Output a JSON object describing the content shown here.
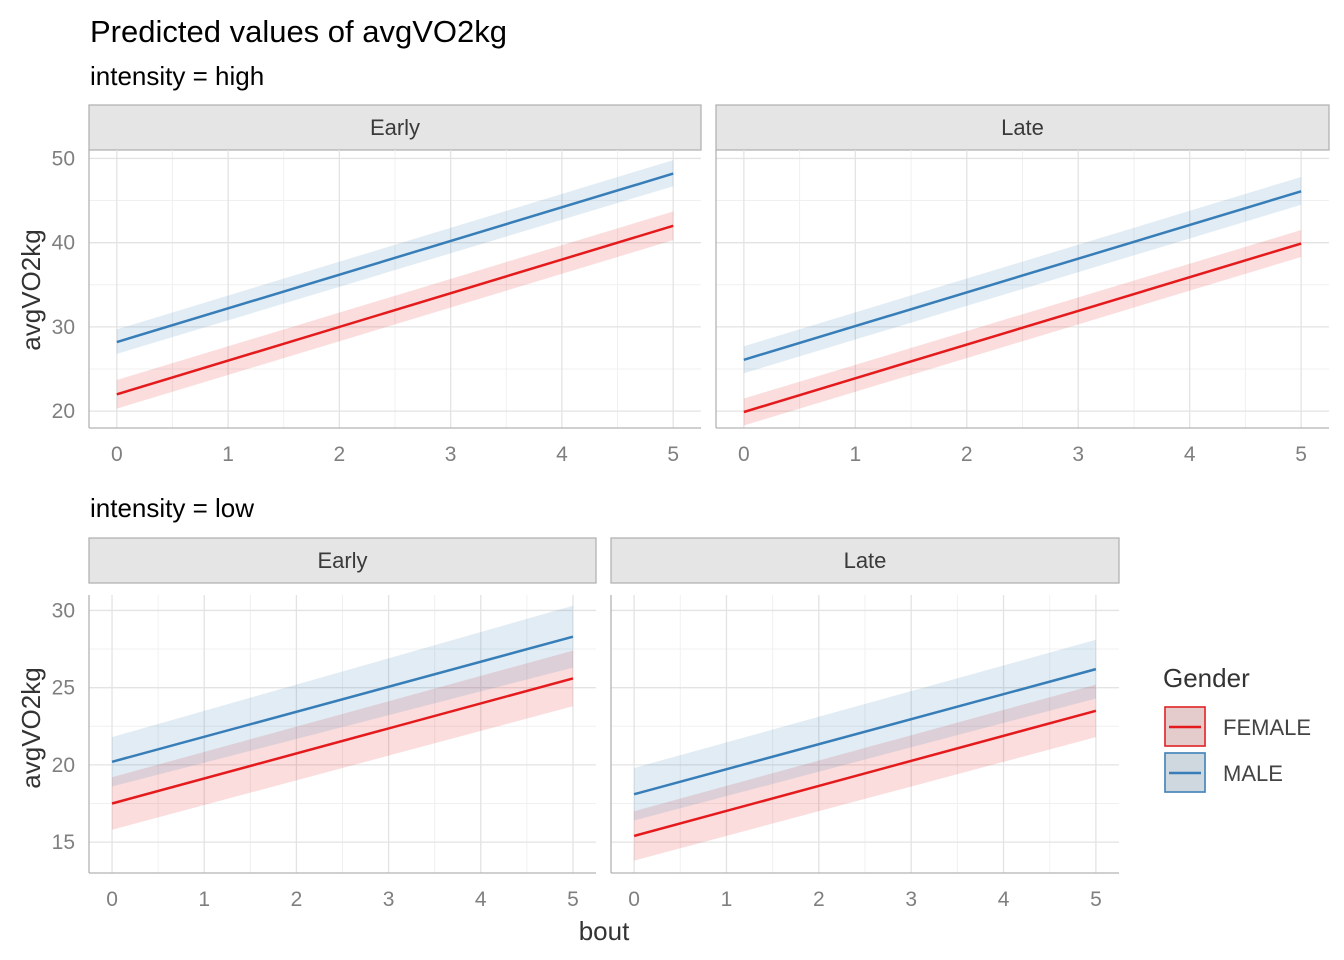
{
  "title": "Predicted values of avgVO2kg",
  "colors": {
    "FEMALE": "#e41a1c",
    "MALE": "#377eb8"
  },
  "legend": {
    "title": "Gender",
    "items": [
      "FEMALE",
      "MALE"
    ]
  },
  "chart_data": [
    {
      "type": "line",
      "subtitle": "intensity = high",
      "facet": "Early",
      "xlabel": "",
      "ylabel": "avgVO2kg",
      "xlim": [
        0,
        5
      ],
      "ylim": [
        18,
        51
      ],
      "x_ticks": [
        0,
        1,
        2,
        3,
        4,
        5
      ],
      "y_ticks": [
        20,
        30,
        40,
        50
      ],
      "grid": true,
      "series": [
        {
          "name": "FEMALE",
          "x": [
            0,
            5
          ],
          "y": [
            22,
            42
          ],
          "lower": [
            20.3,
            40.3
          ],
          "upper": [
            23.7,
            43.7
          ]
        },
        {
          "name": "MALE",
          "x": [
            0,
            5
          ],
          "y": [
            28.2,
            48.2
          ],
          "lower": [
            26.8,
            46.7
          ],
          "upper": [
            29.7,
            49.8
          ]
        }
      ]
    },
    {
      "type": "line",
      "subtitle": "",
      "facet": "Late",
      "xlabel": "",
      "ylabel": "",
      "xlim": [
        0,
        5
      ],
      "ylim": [
        18,
        51
      ],
      "x_ticks": [
        0,
        1,
        2,
        3,
        4,
        5
      ],
      "y_ticks": [
        20,
        30,
        40,
        50
      ],
      "grid": true,
      "series": [
        {
          "name": "FEMALE",
          "x": [
            0,
            5
          ],
          "y": [
            19.9,
            39.9
          ],
          "lower": [
            18.3,
            38.3
          ],
          "upper": [
            21.5,
            41.5
          ]
        },
        {
          "name": "MALE",
          "x": [
            0,
            5
          ],
          "y": [
            26.1,
            46.1
          ],
          "lower": [
            24.5,
            44.5
          ],
          "upper": [
            27.7,
            47.8
          ]
        }
      ]
    },
    {
      "type": "line",
      "subtitle": "intensity = low",
      "facet": "Early",
      "xlabel": "bout",
      "ylabel": "avgVO2kg",
      "xlim": [
        0,
        5
      ],
      "ylim": [
        13,
        31
      ],
      "x_ticks": [
        0,
        1,
        2,
        3,
        4,
        5
      ],
      "y_ticks": [
        15,
        20,
        25,
        30
      ],
      "grid": true,
      "series": [
        {
          "name": "FEMALE",
          "x": [
            0,
            5
          ],
          "y": [
            17.5,
            25.6
          ],
          "lower": [
            15.8,
            23.8
          ],
          "upper": [
            19.2,
            27.4
          ]
        },
        {
          "name": "MALE",
          "x": [
            0,
            5
          ],
          "y": [
            20.2,
            28.3
          ],
          "lower": [
            18.6,
            26.3
          ],
          "upper": [
            21.8,
            30.3
          ]
        }
      ]
    },
    {
      "type": "line",
      "subtitle": "",
      "facet": "Late",
      "xlabel": "",
      "ylabel": "",
      "xlim": [
        0,
        5
      ],
      "ylim": [
        13,
        31
      ],
      "x_ticks": [
        0,
        1,
        2,
        3,
        4,
        5
      ],
      "y_ticks": [
        15,
        20,
        25,
        30
      ],
      "grid": true,
      "series": [
        {
          "name": "FEMALE",
          "x": [
            0,
            5
          ],
          "y": [
            15.4,
            23.5
          ],
          "lower": [
            13.8,
            21.8
          ],
          "upper": [
            17,
            25.2
          ]
        },
        {
          "name": "MALE",
          "x": [
            0,
            5
          ],
          "y": [
            18.1,
            26.2
          ],
          "lower": [
            16.4,
            24.3
          ],
          "upper": [
            19.8,
            28.1
          ]
        }
      ]
    }
  ]
}
